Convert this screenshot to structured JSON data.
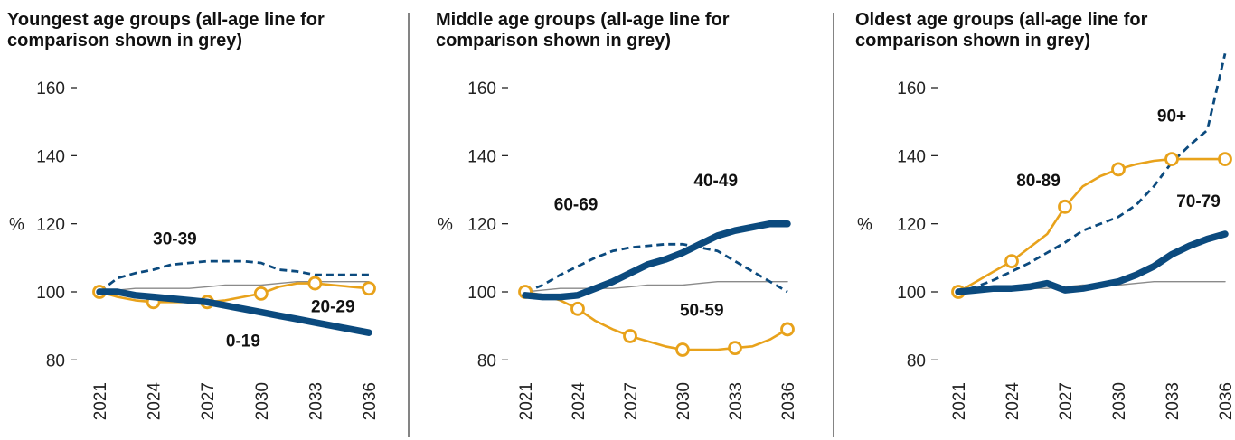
{
  "colors": {
    "navy": "#0b4a7e",
    "gold": "#e8a21b",
    "grey": "#8a8a8a",
    "divider": "#333333"
  },
  "chart_data": [
    {
      "type": "line",
      "title_lines": [
        "Youngest age groups (all-age line for",
        "comparison shown in grey)"
      ],
      "unit": "%",
      "ylim": [
        75,
        170
      ],
      "yticks": [
        "80",
        "100",
        "120",
        "140",
        "160"
      ],
      "xticks": [
        "2021",
        "2024",
        "2027",
        "2030",
        "2033",
        "2036"
      ],
      "x": [
        2021,
        2022,
        2023,
        2024,
        2025,
        2026,
        2027,
        2028,
        2029,
        2030,
        2031,
        2032,
        2033,
        2034,
        2035,
        2036
      ],
      "series": [
        {
          "name": "all ages",
          "style": "grey",
          "values": [
            100,
            100.5,
            101,
            101,
            101,
            101,
            101.5,
            102,
            102,
            102,
            102.5,
            103,
            103,
            103,
            103,
            103
          ]
        },
        {
          "name": "30-39",
          "style": "navy-dashed",
          "values": [
            100,
            104,
            105.5,
            106.5,
            108,
            108.5,
            109,
            109,
            109,
            108.5,
            106.5,
            106,
            105,
            105,
            105,
            105
          ]
        },
        {
          "name": "20-29",
          "style": "gold-markers",
          "values": [
            100,
            98.5,
            97.5,
            97,
            97,
            97,
            97,
            97.5,
            98.5,
            99.5,
            101.5,
            102.5,
            102.5,
            102,
            101.5,
            101
          ]
        },
        {
          "name": "0-19",
          "style": "navy-thick",
          "values": [
            100,
            100,
            99,
            98.5,
            98,
            97.5,
            97,
            96,
            95,
            94,
            93,
            92,
            91,
            90,
            89,
            88
          ]
        }
      ],
      "markers": [
        2021,
        2024,
        2027,
        2030,
        2033,
        2036
      ],
      "labels": [
        {
          "text": "30-39",
          "x": 2025.2,
          "y": 114
        },
        {
          "text": "20-29",
          "x": 2034,
          "y": 94
        },
        {
          "text": "0-19",
          "x": 2029.0,
          "y": 84
        }
      ]
    },
    {
      "type": "line",
      "title_lines": [
        "Middle age groups (all-age line for",
        "comparison shown in grey)"
      ],
      "unit": "%",
      "ylim": [
        75,
        170
      ],
      "yticks": [
        "80",
        "100",
        "120",
        "140",
        "160"
      ],
      "xticks": [
        "2021",
        "2024",
        "2027",
        "2030",
        "2033",
        "2036"
      ],
      "x": [
        2021,
        2022,
        2023,
        2024,
        2025,
        2026,
        2027,
        2028,
        2029,
        2030,
        2031,
        2032,
        2033,
        2034,
        2035,
        2036
      ],
      "series": [
        {
          "name": "all ages",
          "style": "grey",
          "values": [
            100,
            100.5,
            101,
            101,
            101,
            101,
            101.5,
            102,
            102,
            102,
            102.5,
            103,
            103,
            103,
            103,
            103
          ]
        },
        {
          "name": "60-69",
          "style": "navy-dashed",
          "values": [
            100,
            102,
            105,
            107.5,
            110,
            112,
            113,
            113.5,
            114,
            114,
            113,
            112,
            109,
            106,
            103,
            100
          ]
        },
        {
          "name": "50-59",
          "style": "gold-markers",
          "values": [
            100,
            99,
            97.5,
            95,
            91.5,
            89,
            87,
            85.5,
            84,
            83,
            83,
            83,
            83.5,
            84,
            86,
            89
          ]
        },
        {
          "name": "40-49",
          "style": "navy-thick",
          "values": [
            99,
            98.5,
            98.5,
            99,
            101,
            103,
            105.5,
            108,
            109.5,
            111.5,
            114,
            116.5,
            118,
            119,
            120,
            120
          ]
        }
      ],
      "markers": [
        2021,
        2024,
        2027,
        2030,
        2033,
        2036
      ],
      "labels": [
        {
          "text": "60-69",
          "x": 2023.9,
          "y": 124
        },
        {
          "text": "40-49",
          "x": 2031.9,
          "y": 131
        },
        {
          "text": "50-59",
          "x": 2031.1,
          "y": 93
        }
      ]
    },
    {
      "type": "line",
      "title_lines": [
        "Oldest age groups (all-age line for",
        "comparison shown in grey)"
      ],
      "unit": "%",
      "ylim": [
        75,
        170
      ],
      "yticks": [
        "80",
        "100",
        "120",
        "140",
        "160"
      ],
      "xticks": [
        "2021",
        "2024",
        "2027",
        "2030",
        "2033",
        "2036"
      ],
      "x": [
        2021,
        2022,
        2023,
        2024,
        2025,
        2026,
        2027,
        2028,
        2029,
        2030,
        2031,
        2032,
        2033,
        2034,
        2035,
        2036
      ],
      "series": [
        {
          "name": "all ages",
          "style": "grey",
          "values": [
            100,
            100.5,
            101,
            101,
            101,
            101,
            101.5,
            102,
            102,
            102,
            102.5,
            103,
            103,
            103,
            103,
            103
          ]
        },
        {
          "name": "90+",
          "style": "navy-dashed",
          "values": [
            100,
            101.5,
            103.5,
            106,
            108.5,
            111.5,
            114.5,
            118,
            120,
            122,
            125.5,
            131,
            138,
            143,
            147.5,
            170
          ]
        },
        {
          "name": "80-89",
          "style": "gold-markers",
          "values": [
            100,
            103,
            106,
            109,
            113,
            117,
            125,
            131,
            134,
            136,
            137.5,
            138.5,
            139,
            139,
            139,
            139
          ]
        },
        {
          "name": "70-79",
          "style": "navy-thick",
          "values": [
            100,
            100.5,
            101,
            101,
            101.5,
            102.5,
            100.5,
            101,
            102,
            103,
            105,
            107.5,
            111,
            113.5,
            115.5,
            117
          ]
        }
      ],
      "markers": [
        2021,
        2024,
        2027,
        2030,
        2033,
        2036
      ],
      "labels": [
        {
          "text": "90+",
          "x": 2033.0,
          "y": 150
        },
        {
          "text": "80-89",
          "x": 2025.5,
          "y": 131
        },
        {
          "text": "70-79",
          "x": 2034.5,
          "y": 125
        }
      ]
    }
  ]
}
